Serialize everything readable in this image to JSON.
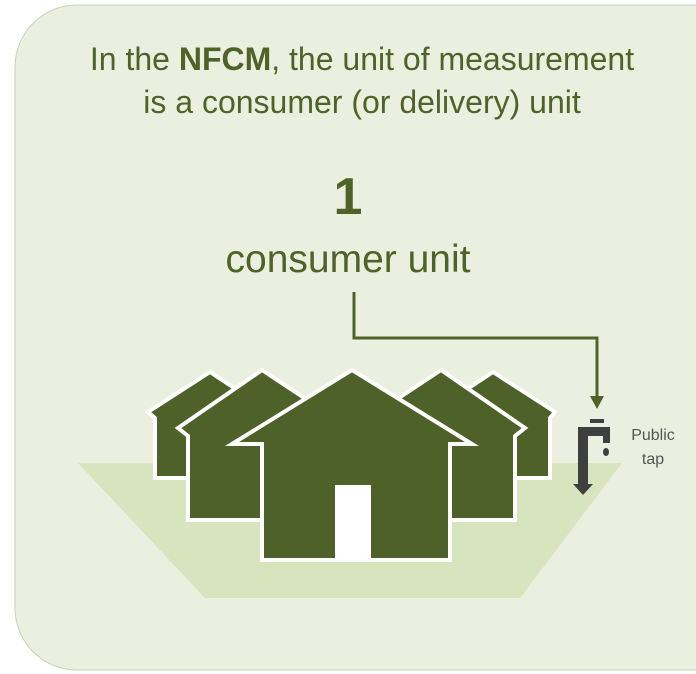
{
  "title": {
    "before": "In the ",
    "bold": "NFCM",
    "after": ", the unit of measurement",
    "line2": "is a consumer (or delivery) unit"
  },
  "count": "1",
  "unit": "consumer unit",
  "tap_label": {
    "line1": "Public",
    "line2": "tap"
  }
}
